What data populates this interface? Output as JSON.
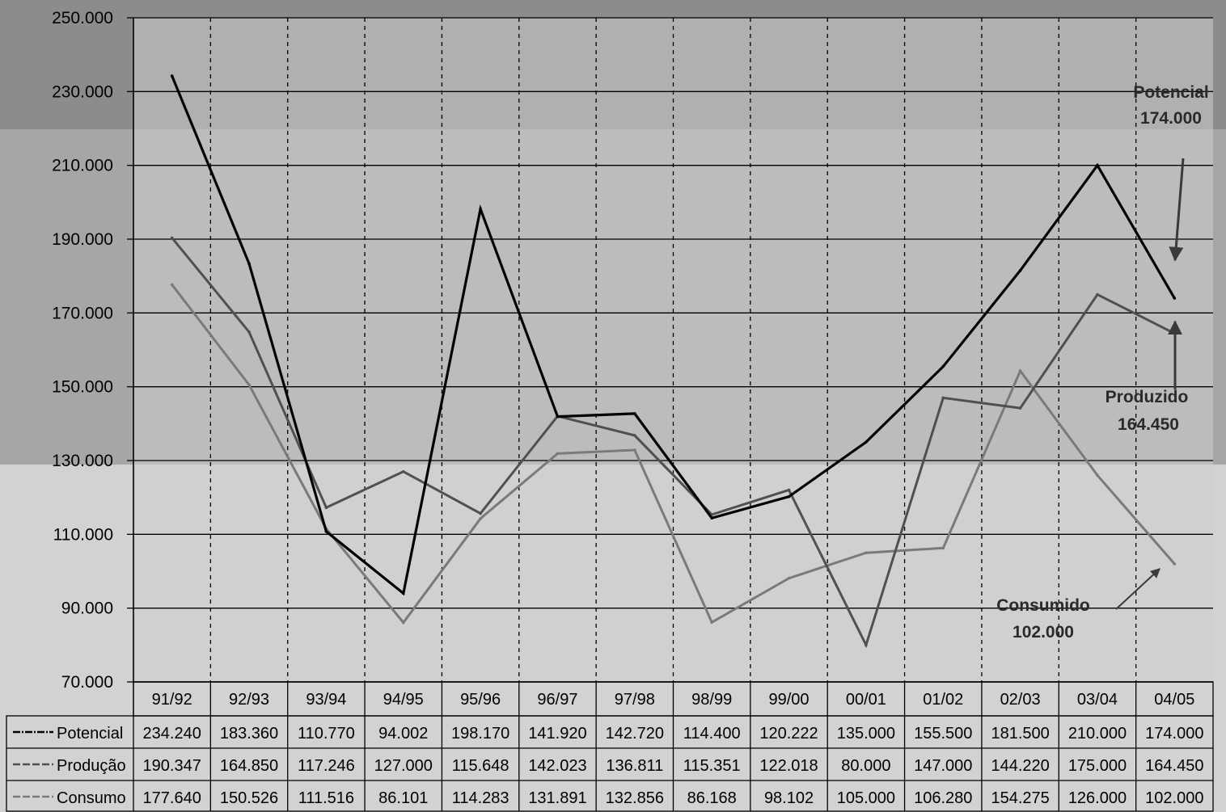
{
  "chart_data": {
    "type": "line",
    "categories": [
      "91/92",
      "92/93",
      "93/94",
      "94/95",
      "95/96",
      "96/97",
      "97/98",
      "98/99",
      "99/00",
      "00/01",
      "01/02",
      "02/03",
      "03/04",
      "04/05"
    ],
    "y_ticks": [
      "250.000",
      "230.000",
      "210.000",
      "190.000",
      "170.000",
      "150.000",
      "130.000",
      "110.000",
      "90.000",
      "70.000"
    ],
    "ylim": [
      70000,
      250000
    ],
    "grid": true,
    "series": [
      {
        "name": "Potencial",
        "color": "#000000",
        "values": [
          234240,
          183360,
          110770,
          94002,
          198170,
          141920,
          142720,
          114400,
          120222,
          135000,
          155500,
          181500,
          210000,
          174000
        ],
        "labels": [
          "234.240",
          "183.360",
          "110.770",
          "94.002",
          "198.170",
          "141.920",
          "142.720",
          "114.400",
          "120.222",
          "135.000",
          "155.500",
          "181.500",
          "210.000",
          "174.000"
        ]
      },
      {
        "name": "Produção",
        "color": "#505050",
        "values": [
          190347,
          164850,
          117246,
          127000,
          115648,
          142023,
          136811,
          115351,
          122018,
          80000,
          147000,
          144220,
          175000,
          164450
        ],
        "labels": [
          "190.347",
          "164.850",
          "117.246",
          "127.000",
          "115.648",
          "142.023",
          "136.811",
          "115.351",
          "122.018",
          "80.000",
          "147.000",
          "144.220",
          "175.000",
          "164.450"
        ]
      },
      {
        "name": "Consumo",
        "color": "#7a7a7a",
        "values": [
          177640,
          150526,
          111516,
          86101,
          114283,
          131891,
          132856,
          86168,
          98102,
          105000,
          106280,
          154275,
          126000,
          102000
        ],
        "labels": [
          "177.640",
          "150.526",
          "111.516",
          "86.101",
          "114.283",
          "131.891",
          "132.856",
          "86.168",
          "98.102",
          "105.000",
          "106.280",
          "154.275",
          "126.000",
          "102.000"
        ]
      }
    ],
    "annotations": [
      {
        "title": "Potencial",
        "value": "174.000"
      },
      {
        "title": "Produzido",
        "value": "164.450"
      },
      {
        "title": "Consumido",
        "value": "102.000"
      }
    ]
  }
}
